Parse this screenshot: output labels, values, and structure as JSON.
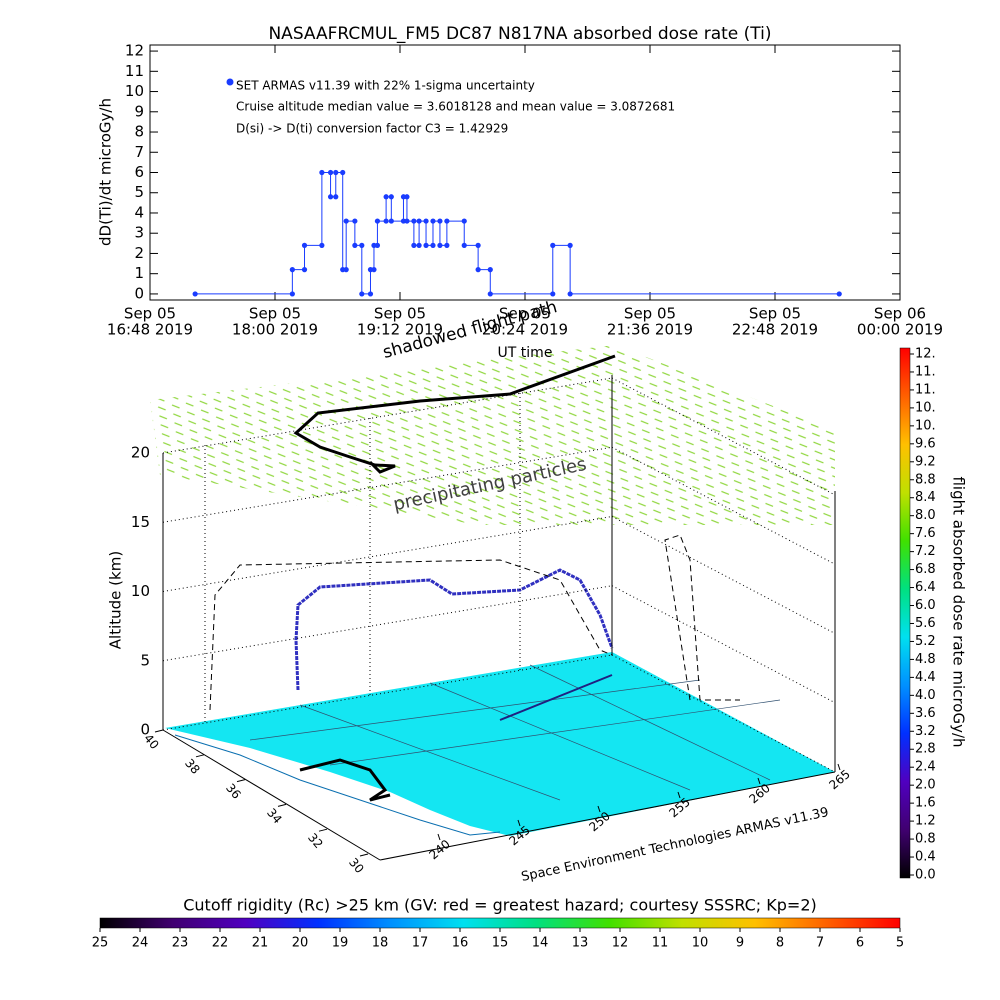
{
  "chart_data": [
    {
      "type": "line",
      "title": "NASAAFRCMUL_FM5 DC87 N817NA absorbed dose rate (Ti)",
      "y_label": "dD(Ti)/dt microGy/h",
      "x_label": "UT time",
      "xlim": [
        "2019-09-05T16:48",
        "2019-09-06T00:00"
      ],
      "xticks": [
        {
          "value": "2019-09-05T16:48",
          "label": [
            "Sep 05",
            "16:48 2019"
          ]
        },
        {
          "value": "2019-09-05T18:00",
          "label": [
            "Sep 05",
            "18:00 2019"
          ]
        },
        {
          "value": "2019-09-05T19:12",
          "label": [
            "Sep 05",
            "19:12 2019"
          ]
        },
        {
          "value": "2019-09-05T20:24",
          "label": [
            "Sep 05",
            "20:24 2019"
          ]
        },
        {
          "value": "2019-09-05T21:36",
          "label": [
            "Sep 05",
            "21:36 2019"
          ]
        },
        {
          "value": "2019-09-05T22:48",
          "label": [
            "Sep 05",
            "22:48 2019"
          ]
        },
        {
          "value": "2019-09-06T00:00",
          "label": [
            "Sep 06",
            "00:00 2019"
          ]
        }
      ],
      "ylim": [
        -0.3,
        12.3
      ],
      "yticks": [
        0,
        1,
        2,
        3,
        4,
        5,
        6,
        7,
        8,
        9,
        10,
        11,
        12
      ],
      "annotations": [
        "Cruise altitude median value = 3.6018128 and mean value = 3.0872681",
        "D(si) -> D(ti) conversion factor C3 = 1.42929"
      ],
      "series": [
        {
          "name": "SET ARMAS v11.39 with 22% 1-sigma uncertainty",
          "color": "#1a3cff",
          "x": [
            "2019-09-05T17:14",
            "2019-09-05T18:10",
            "2019-09-05T18:10",
            "2019-09-05T18:17",
            "2019-09-05T18:17",
            "2019-09-05T18:27",
            "2019-09-05T18:27",
            "2019-09-05T18:32",
            "2019-09-05T18:32",
            "2019-09-05T18:35",
            "2019-09-05T18:35",
            "2019-09-05T18:39",
            "2019-09-05T18:39",
            "2019-09-05T18:41",
            "2019-09-05T18:41",
            "2019-09-05T18:46",
            "2019-09-05T18:46",
            "2019-09-05T18:50",
            "2019-09-05T18:50",
            "2019-09-05T18:55",
            "2019-09-05T18:55",
            "2019-09-05T18:57",
            "2019-09-05T18:57",
            "2019-09-05T18:59",
            "2019-09-05T18:59",
            "2019-09-05T19:04",
            "2019-09-05T19:04",
            "2019-09-05T19:07",
            "2019-09-05T19:07",
            "2019-09-05T19:14",
            "2019-09-05T19:14",
            "2019-09-05T19:16",
            "2019-09-05T19:16",
            "2019-09-05T19:20",
            "2019-09-05T19:20",
            "2019-09-05T19:23",
            "2019-09-05T19:23",
            "2019-09-05T19:27",
            "2019-09-05T19:27",
            "2019-09-05T19:31",
            "2019-09-05T19:31",
            "2019-09-05T19:35",
            "2019-09-05T19:35",
            "2019-09-05T19:39",
            "2019-09-05T19:39",
            "2019-09-05T19:49",
            "2019-09-05T19:49",
            "2019-09-05T19:57",
            "2019-09-05T19:57",
            "2019-09-05T20:04",
            "2019-09-05T20:04",
            "2019-09-05T20:40",
            "2019-09-05T20:40",
            "2019-09-05T20:50",
            "2019-09-05T20:50",
            "2019-09-05T23:25"
          ],
          "values": [
            0,
            0,
            1.2,
            1.2,
            2.4,
            2.4,
            6.0,
            6.0,
            4.8,
            4.8,
            6.0,
            6.0,
            1.2,
            1.2,
            3.6,
            3.6,
            2.4,
            2.4,
            0,
            0,
            1.2,
            1.2,
            2.4,
            2.4,
            3.6,
            3.6,
            4.8,
            4.8,
            3.6,
            3.6,
            4.8,
            4.8,
            3.6,
            3.6,
            2.4,
            2.4,
            3.6,
            3.6,
            2.4,
            2.4,
            3.6,
            3.6,
            2.4,
            2.4,
            3.6,
            3.6,
            2.4,
            2.4,
            1.2,
            1.2,
            0,
            0,
            2.4,
            2.4,
            0,
            0
          ]
        }
      ]
    },
    {
      "type": "scene3d",
      "z_label": "Altitude (km)",
      "zlim": [
        0,
        20
      ],
      "zticks": [
        0,
        5,
        10,
        15,
        20
      ],
      "lat_ticks": [
        40,
        38,
        36,
        34,
        32,
        30
      ],
      "lon_ticks": [
        240,
        245,
        250,
        255,
        260,
        265
      ],
      "annotations": [
        "precipitating particles",
        "shadowed flight path",
        "Space Environment Technologies ARMAS v11.39"
      ],
      "colorbar": {
        "label": "flight absorbed dose rate microGy/h",
        "clim": [
          0,
          11.6
        ],
        "ticks": [
          {
            "value": 0,
            "label": "0.0"
          },
          {
            "value": 0.4,
            "label": "0.4"
          },
          {
            "value": 0.8,
            "label": "0.8"
          },
          {
            "value": 1.2,
            "label": "1.2"
          },
          {
            "value": 1.6,
            "label": "1.6"
          },
          {
            "value": 2,
            "label": "2.0"
          },
          {
            "value": 2.4,
            "label": "2.4"
          },
          {
            "value": 2.8,
            "label": "2.8"
          },
          {
            "value": 3.2,
            "label": "3.2"
          },
          {
            "value": 3.6,
            "label": "3.6"
          },
          {
            "value": 4,
            "label": "4.0"
          },
          {
            "value": 4.4,
            "label": "4.4"
          },
          {
            "value": 4.8,
            "label": "4.8"
          },
          {
            "value": 5.2,
            "label": "5.2"
          },
          {
            "value": 5.6,
            "label": "5.6"
          },
          {
            "value": 6,
            "label": "6.0"
          },
          {
            "value": 6.4,
            "label": "6.4"
          },
          {
            "value": 6.8,
            "label": "6.8"
          },
          {
            "value": 7.2,
            "label": "7.2"
          },
          {
            "value": 7.6,
            "label": "7.6"
          },
          {
            "value": 8,
            "label": "8.0"
          },
          {
            "value": 8.4,
            "label": "8.4"
          },
          {
            "value": 8.8,
            "label": "8.8"
          },
          {
            "value": 9.2,
            "label": "9.2"
          },
          {
            "value": 9.6,
            "label": "9.6"
          },
          {
            "value": 10,
            "label": "10."
          },
          {
            "value": 10.4,
            "label": "10."
          },
          {
            "value": 10.8,
            "label": "11."
          },
          {
            "value": 11.2,
            "label": "11."
          },
          {
            "value": 11.6,
            "label": "12."
          }
        ]
      },
      "cutoff_colorbar": {
        "label": "Cutoff rigidity (Rc) >25 km (GV: red = greatest hazard; courtesy SSSRC; Kp=2)",
        "clim": [
          25,
          5
        ],
        "ticks": [
          25,
          24,
          23,
          22,
          21,
          20,
          19,
          18,
          17,
          16,
          15,
          14,
          13,
          12,
          11,
          10,
          9,
          8,
          7,
          6,
          5
        ]
      }
    }
  ]
}
